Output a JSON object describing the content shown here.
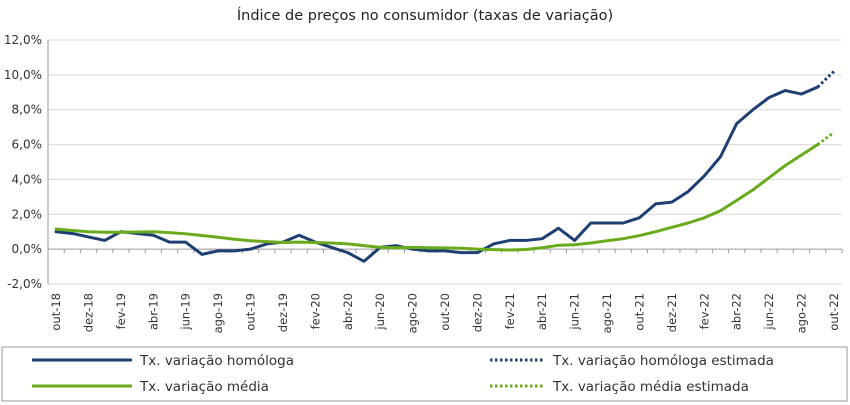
{
  "chart_data": {
    "type": "line",
    "title": "Índice de preços no consumidor  (taxas  de variação)",
    "xlabel": "",
    "ylabel": "",
    "ylim": [
      -2,
      12
    ],
    "yticks": [
      "-2,0%",
      "0,0%",
      "2,0%",
      "4,0%",
      "6,0%",
      "8,0%",
      "10,0%",
      "12,0%"
    ],
    "ytick_values": [
      -2,
      0,
      2,
      4,
      6,
      8,
      10,
      12
    ],
    "grid": true,
    "legend_position": "bottom",
    "x": [
      "out-18",
      "nov-18",
      "dez-18",
      "jan-19",
      "fev-19",
      "mar-19",
      "abr-19",
      "mai-19",
      "jun-19",
      "jul-19",
      "ago-19",
      "set-19",
      "out-19",
      "nov-19",
      "dez-19",
      "jan-20",
      "fev-20",
      "mar-20",
      "abr-20",
      "mai-20",
      "jun-20",
      "jul-20",
      "ago-20",
      "set-20",
      "out-20",
      "nov-20",
      "dez-20",
      "jan-21",
      "fev-21",
      "mar-21",
      "abr-21",
      "mai-21",
      "jun-21",
      "jul-21",
      "ago-21",
      "set-21",
      "out-21",
      "nov-21",
      "dez-21",
      "jan-22",
      "fev-22",
      "mar-22",
      "abr-22",
      "mai-22",
      "jun-22",
      "jul-22",
      "ago-22",
      "set-22",
      "out-22"
    ],
    "xtick_labels": [
      "out-18",
      "dez-18",
      "fev-19",
      "abr-19",
      "jun-19",
      "ago-19",
      "out-19",
      "dez-19",
      "fev-20",
      "abr-20",
      "jun-20",
      "ago-20",
      "out-20",
      "dez-20",
      "fev-21",
      "abr-21",
      "jun-21",
      "ago-21",
      "out-21",
      "dez-21",
      "fev-22",
      "abr-22",
      "jun-22",
      "ago-22",
      "out-22"
    ],
    "series": [
      {
        "name": "Tx. variação homóloga",
        "color": "#1F3F73",
        "style": "solid",
        "values": [
          1.0,
          0.9,
          0.7,
          0.5,
          1.0,
          0.9,
          0.8,
          0.4,
          0.4,
          -0.3,
          -0.1,
          -0.1,
          0.0,
          0.3,
          0.4,
          0.8,
          0.4,
          0.1,
          -0.2,
          -0.7,
          0.1,
          0.2,
          0.0,
          -0.1,
          -0.1,
          -0.2,
          -0.2,
          0.3,
          0.5,
          0.5,
          0.6,
          1.2,
          0.5,
          1.5,
          1.5,
          1.5,
          1.8,
          2.6,
          2.7,
          3.3,
          4.2,
          5.3,
          7.2,
          8.0,
          8.7,
          9.1,
          8.9,
          9.3,
          null
        ]
      },
      {
        "name": "Tx. variação homóloga estimada",
        "color": "#1F3F73",
        "style": "dotted",
        "values": [
          null,
          null,
          null,
          null,
          null,
          null,
          null,
          null,
          null,
          null,
          null,
          null,
          null,
          null,
          null,
          null,
          null,
          null,
          null,
          null,
          null,
          null,
          null,
          null,
          null,
          null,
          null,
          null,
          null,
          null,
          null,
          null,
          null,
          null,
          null,
          null,
          null,
          null,
          null,
          null,
          null,
          null,
          null,
          null,
          null,
          null,
          null,
          9.3,
          10.2
        ]
      },
      {
        "name": "Tx. variação média",
        "color": "#6AAB1E",
        "style": "solid",
        "values": [
          1.15,
          1.07,
          1.0,
          0.97,
          0.97,
          0.98,
          1.0,
          0.95,
          0.88,
          0.78,
          0.68,
          0.57,
          0.48,
          0.43,
          0.38,
          0.4,
          0.38,
          0.35,
          0.3,
          0.2,
          0.1,
          0.08,
          0.1,
          0.08,
          0.07,
          0.05,
          0.0,
          -0.03,
          -0.05,
          -0.02,
          0.08,
          0.22,
          0.25,
          0.35,
          0.48,
          0.6,
          0.78,
          1.0,
          1.25,
          1.5,
          1.8,
          2.2,
          2.8,
          3.4,
          4.1,
          4.8,
          5.4,
          6.0,
          null
        ]
      },
      {
        "name": "Tx. variação média  estimada",
        "color": "#6AAB1E",
        "style": "dotted",
        "values": [
          null,
          null,
          null,
          null,
          null,
          null,
          null,
          null,
          null,
          null,
          null,
          null,
          null,
          null,
          null,
          null,
          null,
          null,
          null,
          null,
          null,
          null,
          null,
          null,
          null,
          null,
          null,
          null,
          null,
          null,
          null,
          null,
          null,
          null,
          null,
          null,
          null,
          null,
          null,
          null,
          null,
          null,
          null,
          null,
          null,
          null,
          null,
          6.0,
          6.7
        ]
      }
    ]
  }
}
